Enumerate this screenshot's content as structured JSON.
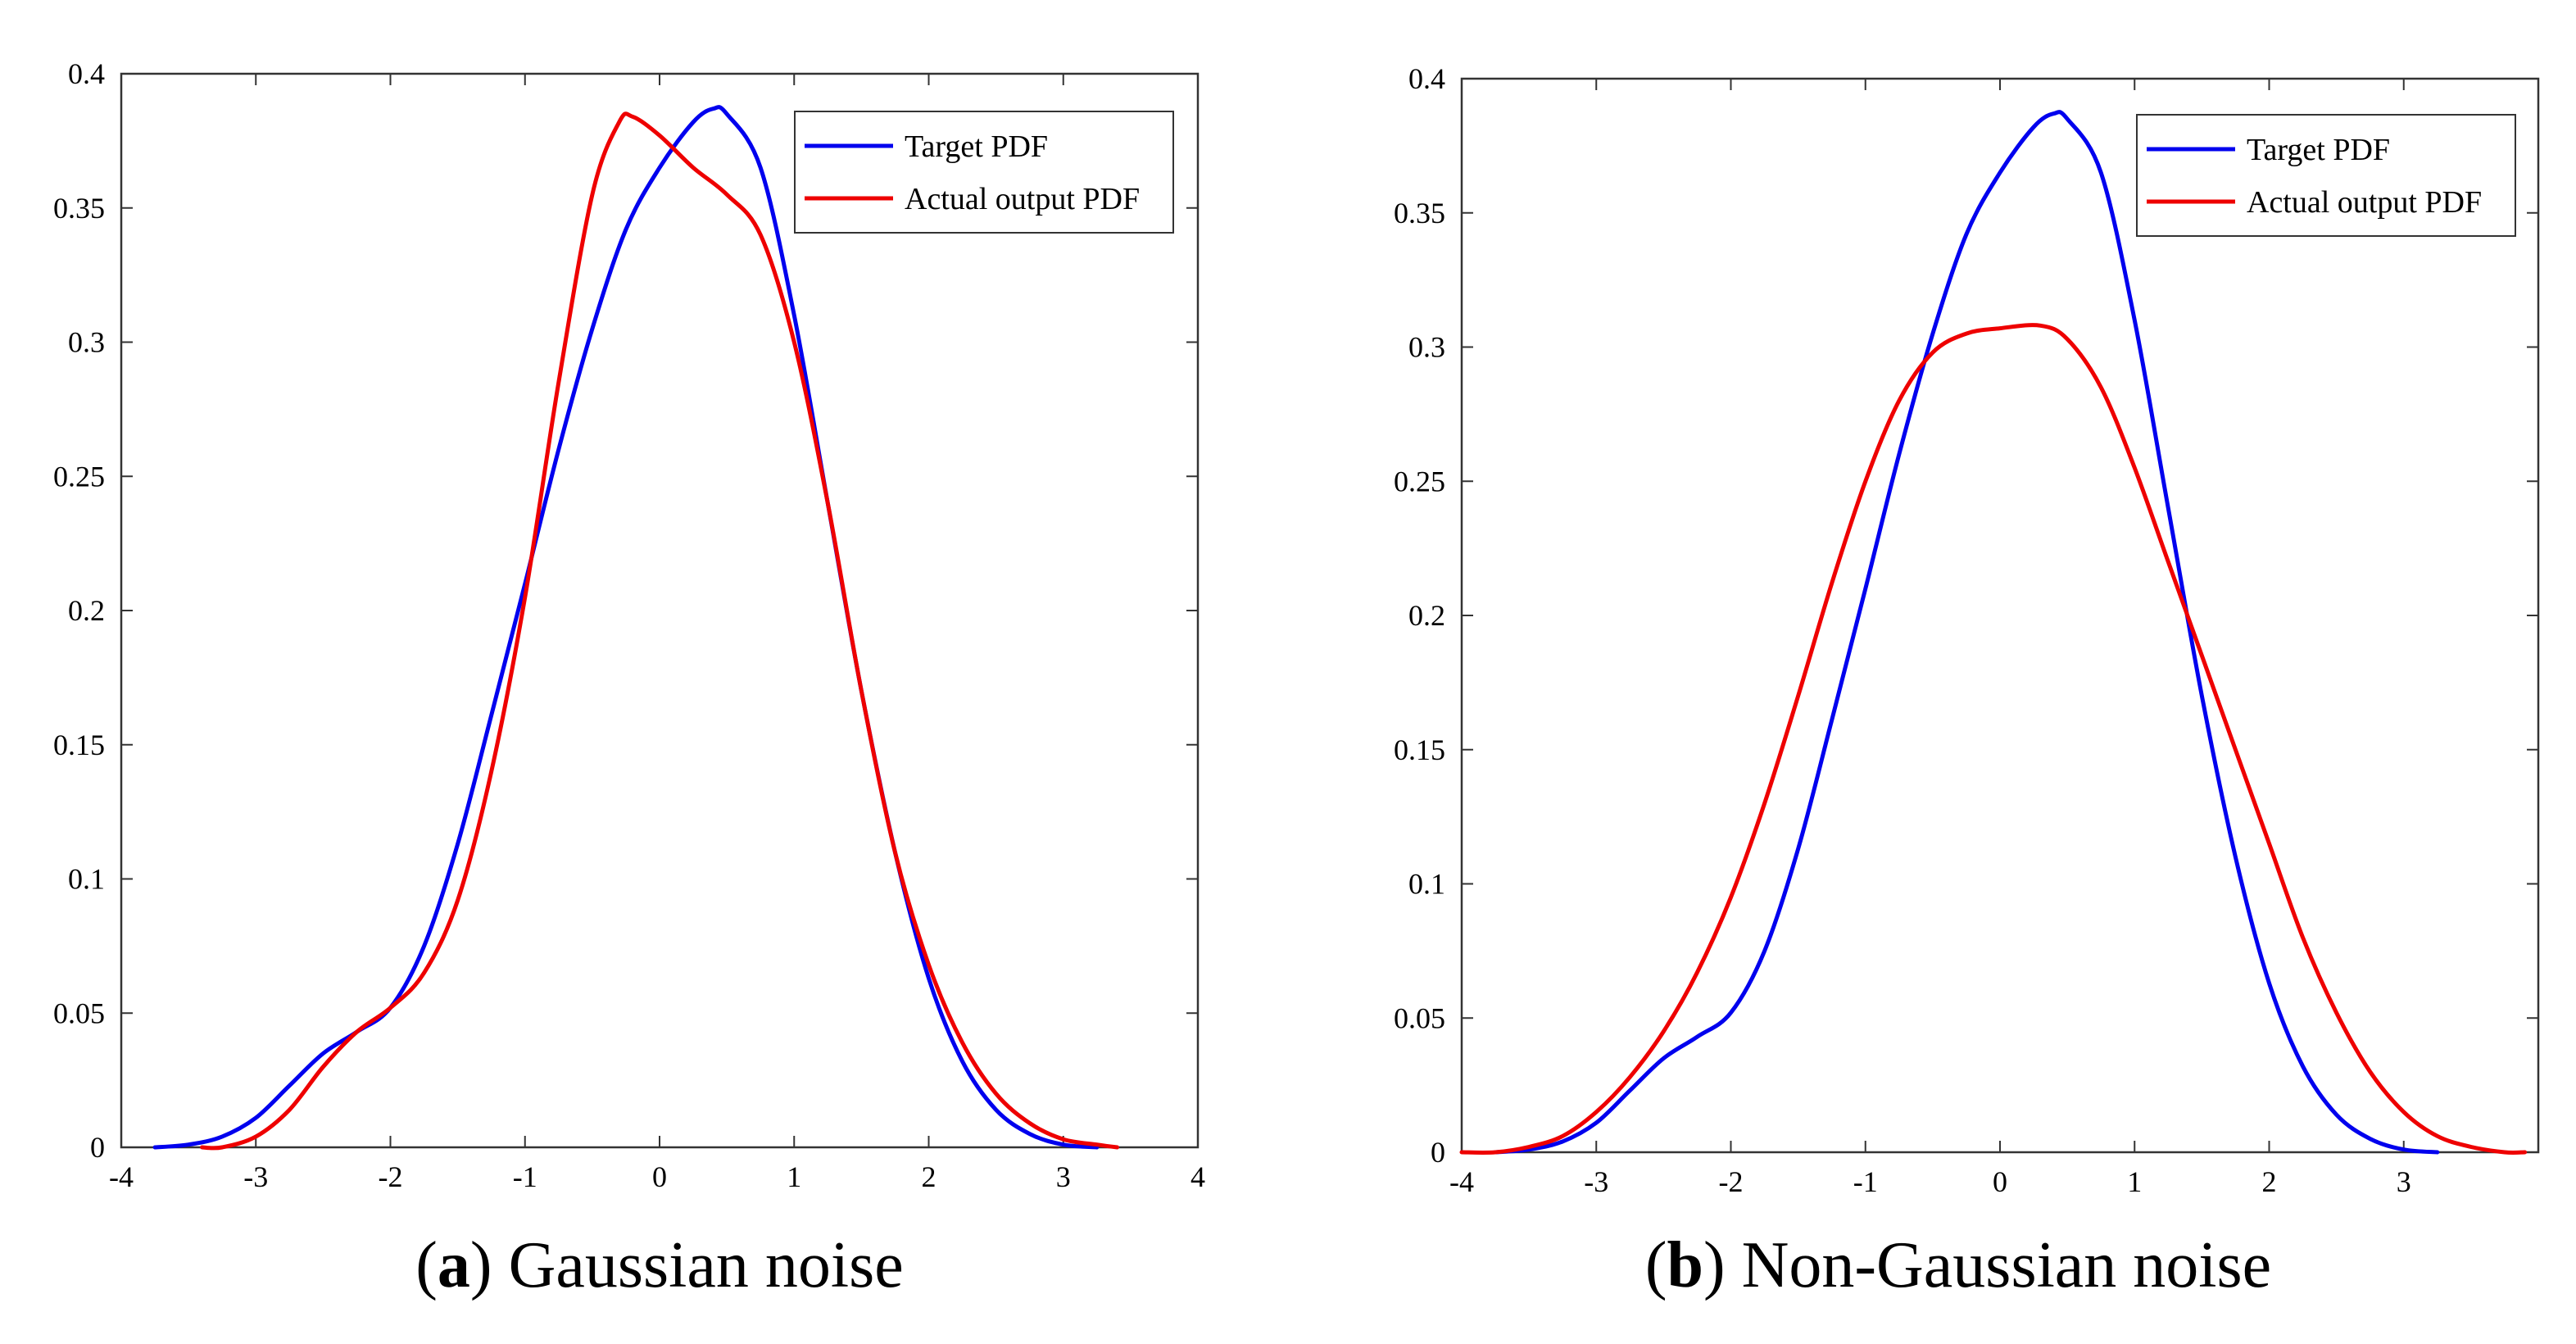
{
  "chart_data": [
    {
      "type": "line",
      "title": "",
      "caption_letter": "a",
      "caption_text": "Gaussian noise",
      "caption_open": "(",
      "caption_close": ") ",
      "xlabel": "",
      "ylabel": "",
      "xlim": [
        -4,
        4
      ],
      "ylim": [
        0,
        0.4
      ],
      "xticks": [
        "-4",
        "-3",
        "-2",
        "-1",
        "0",
        "1",
        "2",
        "3",
        "4"
      ],
      "yticks": [
        "0",
        "0.05",
        "0.1",
        "0.15",
        "0.2",
        "0.25",
        "0.3",
        "0.35",
        "0.4"
      ],
      "grid": false,
      "legend_position": "top-right",
      "series": [
        {
          "name": "Target PDF",
          "color": "#0000ee",
          "x": [
            -3.75,
            -3.5,
            -3.25,
            -3.0,
            -2.75,
            -2.5,
            -2.25,
            -2.0,
            -1.75,
            -1.5,
            -1.25,
            -1.0,
            -0.75,
            -0.5,
            -0.25,
            0.0,
            0.25,
            0.4,
            0.5,
            0.75,
            1.0,
            1.25,
            1.5,
            1.75,
            2.0,
            2.25,
            2.5,
            2.75,
            3.0,
            3.25
          ],
          "y": [
            0.0,
            0.001,
            0.004,
            0.011,
            0.023,
            0.035,
            0.043,
            0.052,
            0.075,
            0.113,
            0.161,
            0.21,
            0.26,
            0.305,
            0.342,
            0.365,
            0.382,
            0.387,
            0.385,
            0.365,
            0.31,
            0.24,
            0.17,
            0.11,
            0.063,
            0.032,
            0.014,
            0.005,
            0.001,
            0.0
          ]
        },
        {
          "name": "Actual output PDF",
          "color": "#ee0000",
          "x": [
            -3.4,
            -3.25,
            -3.0,
            -2.75,
            -2.5,
            -2.25,
            -2.0,
            -1.75,
            -1.5,
            -1.25,
            -1.0,
            -0.75,
            -0.5,
            -0.3,
            -0.2,
            0.0,
            0.25,
            0.5,
            0.75,
            1.0,
            1.25,
            1.5,
            1.75,
            2.0,
            2.25,
            2.5,
            2.75,
            3.0,
            3.25,
            3.4
          ],
          "y": [
            0.0,
            0.0,
            0.004,
            0.014,
            0.03,
            0.043,
            0.052,
            0.065,
            0.092,
            0.14,
            0.205,
            0.285,
            0.355,
            0.382,
            0.384,
            0.377,
            0.365,
            0.355,
            0.34,
            0.3,
            0.24,
            0.17,
            0.11,
            0.068,
            0.039,
            0.02,
            0.009,
            0.003,
            0.001,
            0.0
          ]
        }
      ]
    },
    {
      "type": "line",
      "title": "",
      "caption_letter": "b",
      "caption_text": "Non-Gaussian noise",
      "caption_open": "(",
      "caption_close": ") ",
      "xlabel": "",
      "ylabel": "",
      "xlim": [
        -4,
        4
      ],
      "ylim": [
        0,
        0.4
      ],
      "xticks": [
        "-4",
        "-3",
        "-2",
        "-1",
        "0",
        "1",
        "2",
        "3"
      ],
      "yticks": [
        "0",
        "0.05",
        "0.1",
        "0.15",
        "0.2",
        "0.25",
        "0.3",
        "0.35",
        "0.4"
      ],
      "grid": false,
      "legend_position": "top-right",
      "series": [
        {
          "name": "Target PDF",
          "color": "#0000ee",
          "x": [
            -3.75,
            -3.5,
            -3.25,
            -3.0,
            -2.75,
            -2.5,
            -2.25,
            -2.0,
            -1.75,
            -1.5,
            -1.25,
            -1.0,
            -0.75,
            -0.5,
            -0.25,
            0.0,
            0.25,
            0.4,
            0.5,
            0.75,
            1.0,
            1.25,
            1.5,
            1.75,
            2.0,
            2.25,
            2.5,
            2.75,
            3.0,
            3.25
          ],
          "y": [
            0.0,
            0.001,
            0.004,
            0.011,
            0.023,
            0.035,
            0.043,
            0.052,
            0.075,
            0.113,
            0.161,
            0.21,
            0.26,
            0.305,
            0.342,
            0.365,
            0.382,
            0.387,
            0.385,
            0.365,
            0.31,
            0.24,
            0.17,
            0.11,
            0.063,
            0.032,
            0.014,
            0.005,
            0.001,
            0.0
          ]
        },
        {
          "name": "Actual output PDF",
          "color": "#ee0000",
          "x": [
            -4.0,
            -3.75,
            -3.5,
            -3.25,
            -3.0,
            -2.75,
            -2.5,
            -2.25,
            -2.0,
            -1.75,
            -1.5,
            -1.25,
            -1.0,
            -0.75,
            -0.5,
            -0.25,
            0.0,
            0.3,
            0.5,
            0.75,
            1.0,
            1.25,
            1.5,
            1.75,
            2.0,
            2.25,
            2.5,
            2.75,
            3.0,
            3.25,
            3.5,
            3.75,
            3.9
          ],
          "y": [
            0.0,
            0.0,
            0.002,
            0.006,
            0.015,
            0.028,
            0.045,
            0.067,
            0.095,
            0.13,
            0.17,
            0.212,
            0.25,
            0.28,
            0.298,
            0.305,
            0.307,
            0.308,
            0.303,
            0.285,
            0.255,
            0.22,
            0.185,
            0.15,
            0.115,
            0.08,
            0.052,
            0.03,
            0.015,
            0.006,
            0.002,
            0.0,
            0.0
          ]
        }
      ]
    }
  ]
}
